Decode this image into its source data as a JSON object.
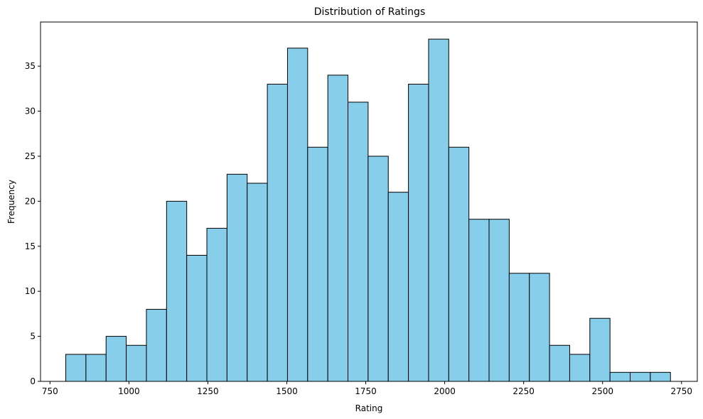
{
  "chart_data": {
    "type": "bar",
    "title": "Distribution of Ratings",
    "xlabel": "Rating",
    "ylabel": "Frequency",
    "xlim": [
      720,
      2800
    ],
    "ylim": [
      0,
      39.9
    ],
    "bar_color": "#87ceeb",
    "edge_color": "#000000",
    "bin_start": 800,
    "bin_end": 2715,
    "values": [
      3,
      3,
      5,
      4,
      8,
      20,
      14,
      17,
      23,
      22,
      33,
      37,
      26,
      34,
      31,
      25,
      21,
      33,
      38,
      26,
      18,
      18,
      12,
      12,
      4,
      3,
      7,
      1,
      1,
      1
    ],
    "x_ticks": [
      750,
      1000,
      1250,
      1500,
      1750,
      2000,
      2250,
      2500,
      2750
    ],
    "y_ticks": [
      0,
      5,
      10,
      15,
      20,
      25,
      30,
      35
    ],
    "grid": false,
    "legend": "none"
  }
}
